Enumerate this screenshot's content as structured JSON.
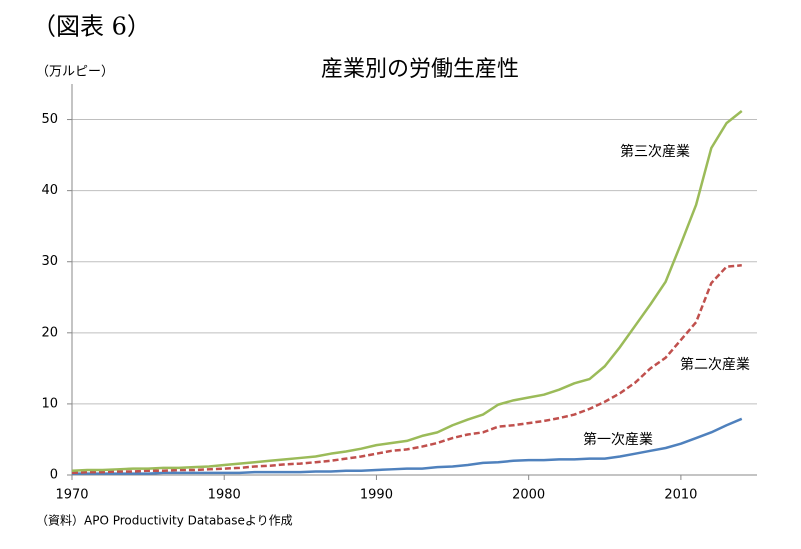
{
  "chart_data": {
    "type": "line",
    "header": "（図表 6）",
    "title": "産業別の労働生産性",
    "y_label": "（万ルピー）",
    "source": "（資料）APO Productivity Databaseより作成",
    "x": [
      1970,
      1971,
      1972,
      1973,
      1974,
      1975,
      1976,
      1977,
      1978,
      1979,
      1980,
      1981,
      1982,
      1983,
      1984,
      1985,
      1986,
      1987,
      1988,
      1989,
      1990,
      1991,
      1992,
      1993,
      1994,
      1995,
      1996,
      1997,
      1998,
      1999,
      2000,
      2001,
      2002,
      2003,
      2004,
      2005,
      2006,
      2007,
      2008,
      2009,
      2010,
      2011,
      2012,
      2013,
      2014
    ],
    "series": [
      {
        "name": "第一次産業",
        "color": "#4f81bd",
        "dashed": false,
        "values": [
          0.2,
          0.2,
          0.2,
          0.2,
          0.2,
          0.2,
          0.3,
          0.3,
          0.3,
          0.3,
          0.3,
          0.3,
          0.4,
          0.4,
          0.4,
          0.4,
          0.5,
          0.5,
          0.6,
          0.6,
          0.7,
          0.8,
          0.9,
          0.9,
          1.1,
          1.2,
          1.4,
          1.7,
          1.8,
          2.0,
          2.1,
          2.1,
          2.2,
          2.2,
          2.3,
          2.3,
          2.6,
          3.0,
          3.4,
          3.8,
          4.4,
          5.2,
          6.0,
          7.0,
          7.9
        ]
      },
      {
        "name": "第二次産業",
        "color": "#c0504d",
        "dashed": true,
        "values": [
          0.3,
          0.4,
          0.4,
          0.5,
          0.5,
          0.6,
          0.6,
          0.7,
          0.7,
          0.8,
          0.9,
          1.0,
          1.2,
          1.3,
          1.5,
          1.6,
          1.8,
          2.0,
          2.3,
          2.6,
          3.0,
          3.4,
          3.6,
          4.0,
          4.5,
          5.2,
          5.7,
          6.0,
          6.8,
          7.0,
          7.3,
          7.6,
          8.0,
          8.5,
          9.3,
          10.3,
          11.5,
          13.0,
          15.0,
          16.5,
          19.0,
          21.5,
          27.0,
          29.3,
          29.5
        ]
      },
      {
        "name": "第三次産業",
        "color": "#9bbb59",
        "dashed": false,
        "values": [
          0.6,
          0.7,
          0.7,
          0.8,
          0.9,
          0.9,
          1.0,
          1.0,
          1.1,
          1.2,
          1.4,
          1.6,
          1.8,
          2.0,
          2.2,
          2.4,
          2.6,
          3.0,
          3.3,
          3.7,
          4.2,
          4.5,
          4.8,
          5.5,
          6.0,
          7.0,
          7.8,
          8.5,
          9.9,
          10.5,
          10.9,
          11.3,
          12.0,
          12.9,
          13.5,
          15.3,
          18.0,
          21.0,
          24.0,
          27.2,
          32.5,
          38.0,
          46.0,
          49.5,
          51.2
        ]
      }
    ],
    "xlim": [
      1970,
      2015
    ],
    "xticks": [
      1970,
      1980,
      1990,
      2000,
      2010
    ],
    "ylim": [
      0,
      55
    ],
    "yticks": [
      0,
      10,
      20,
      30,
      40,
      50
    ],
    "grid": true
  }
}
